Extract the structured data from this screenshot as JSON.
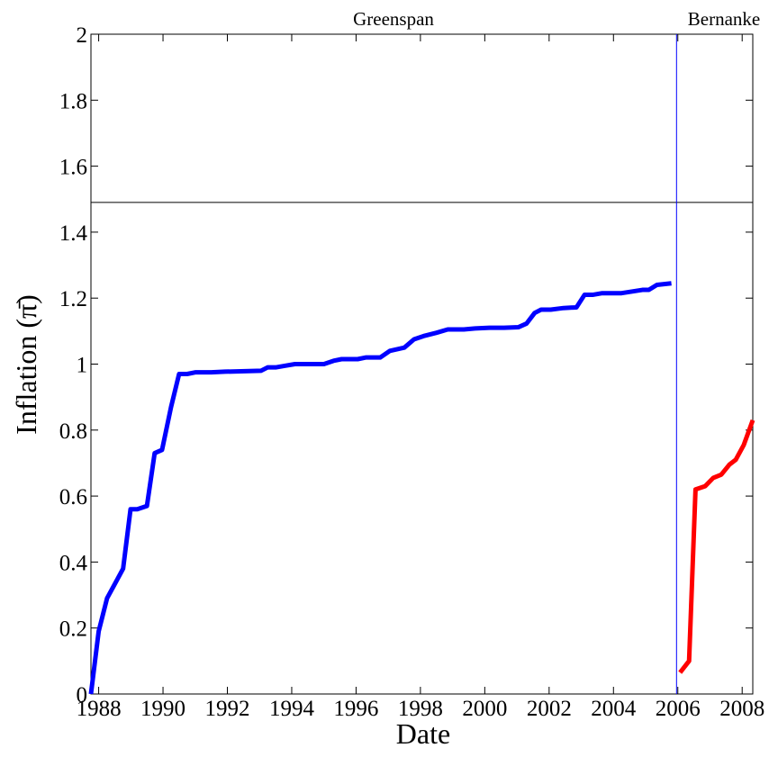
{
  "chart_data": {
    "type": "line",
    "xlabel": "Date",
    "ylabel": "Inflation (π̄)",
    "annotations": [
      "Greenspan",
      "Bernanke"
    ],
    "reference_lines": {
      "y": 1.49,
      "x": 2005.96
    },
    "series": [
      {
        "color": "#0000ff",
        "x": [
          1987.76,
          1988.0,
          1988.26,
          1988.76,
          1988.99,
          1989.2,
          1989.5,
          1989.74,
          1989.97,
          1990.25,
          1990.5,
          1990.75,
          1991.0,
          1991.5,
          1991.93,
          1993.05,
          1993.25,
          1993.5,
          1993.8,
          1994.1,
          1994.5,
          1995.0,
          1995.3,
          1995.55,
          1996.05,
          1996.3,
          1996.75,
          1997.05,
          1997.5,
          1997.8,
          1998.1,
          1998.5,
          1998.85,
          1999.35,
          1999.7,
          2000.15,
          2000.6,
          2001.05,
          2001.3,
          2001.55,
          2001.75,
          2002.05,
          2002.45,
          2002.85,
          2003.1,
          2003.35,
          2003.65,
          2004.25,
          2004.9,
          2005.1,
          2005.35,
          2005.8
        ],
        "values": [
          0,
          0.19,
          0.29,
          0.38,
          0.56,
          0.56,
          0.57,
          0.73,
          0.74,
          0.87,
          0.97,
          0.97,
          0.975,
          0.975,
          0.977,
          0.98,
          0.99,
          0.99,
          0.995,
          1.0,
          1.0,
          1.0,
          1.01,
          1.015,
          1.015,
          1.02,
          1.02,
          1.04,
          1.05,
          1.075,
          1.085,
          1.095,
          1.105,
          1.105,
          1.108,
          1.11,
          1.11,
          1.112,
          1.123,
          1.155,
          1.165,
          1.165,
          1.17,
          1.172,
          1.21,
          1.21,
          1.215,
          1.215,
          1.225,
          1.225,
          1.24,
          1.245
        ]
      },
      {
        "color": "#ff0000",
        "x": [
          2006.07,
          2006.35,
          2006.55,
          2006.85,
          2007.1,
          2007.35,
          2007.6,
          2007.8,
          2008.05,
          2008.33
        ],
        "values": [
          0.065,
          0.1,
          0.62,
          0.63,
          0.655,
          0.665,
          0.695,
          0.71,
          0.755,
          0.83
        ]
      }
    ],
    "xlim": [
      1987.76,
      2008.33
    ],
    "ylim": [
      0,
      2
    ],
    "xticks": [
      1988,
      1990,
      1992,
      1994,
      1996,
      1998,
      2000,
      2002,
      2004,
      2006,
      2008
    ],
    "yticks": [
      0,
      0.2,
      0.4,
      0.6,
      0.8,
      1,
      1.2,
      1.4,
      1.6,
      1.8,
      2
    ]
  }
}
